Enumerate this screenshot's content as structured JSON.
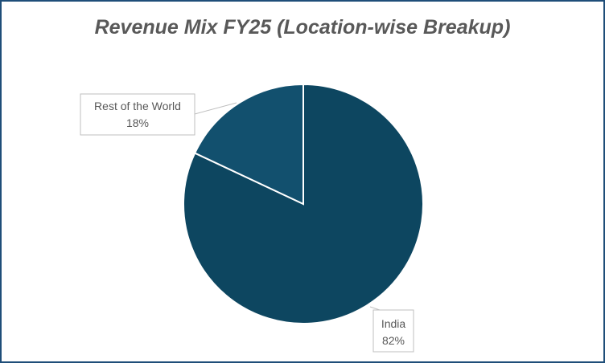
{
  "chart_data": {
    "type": "pie",
    "title": "Revenue Mix FY25 (Location-wise Breakup)",
    "slices": [
      {
        "label": "India",
        "percent_label": "82%",
        "value": 82,
        "color": "#0d4660"
      },
      {
        "label": "Rest of the World",
        "percent_label": "18%",
        "value": 18,
        "color": "#12506e"
      }
    ],
    "start_angle_deg": 0,
    "direction": "clockwise",
    "slice_border_color": "#ffffff",
    "label_border_color": "#bfbfbf",
    "frame_border_color": "#1f4e79"
  }
}
